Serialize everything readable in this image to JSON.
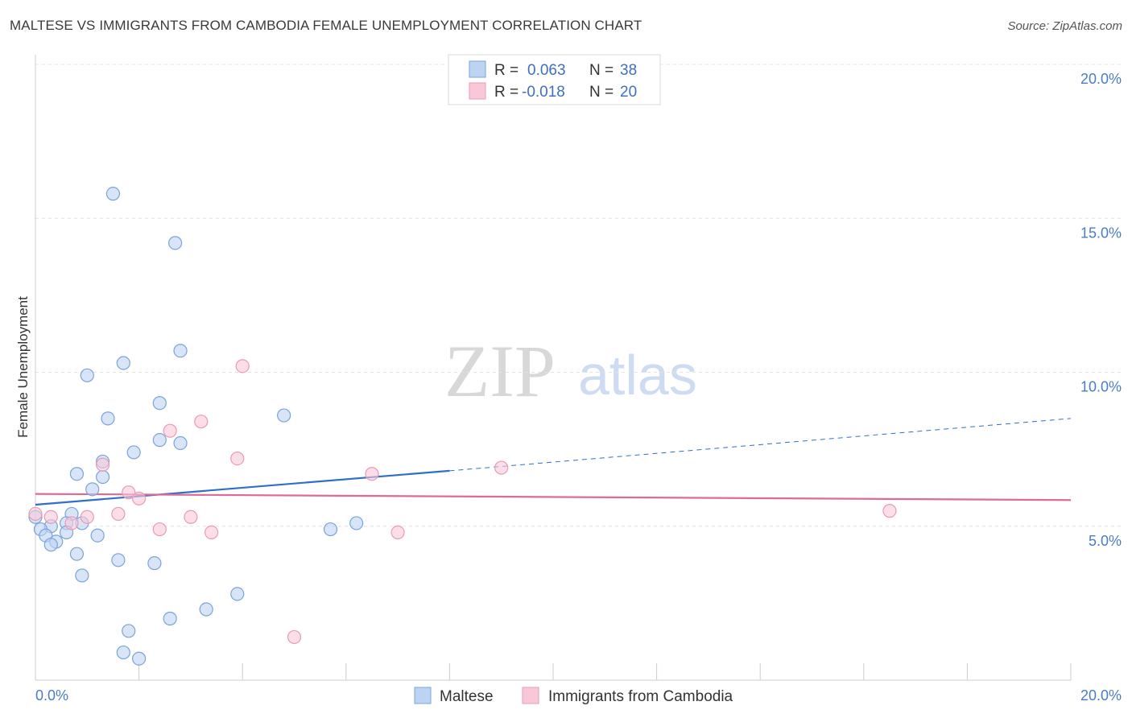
{
  "header": {
    "title": "MALTESE VS IMMIGRANTS FROM CAMBODIA FEMALE UNEMPLOYMENT CORRELATION CHART",
    "source": "Source: ZipAtlas.com"
  },
  "watermark": {
    "zip": "ZIP",
    "atlas": "atlas"
  },
  "colors": {
    "maltese_fill": "#bcd3f2",
    "maltese_stroke": "#7aa3dd",
    "maltese_line": "#2f6fcc",
    "cambodia_fill": "#f9c8d8",
    "cambodia_stroke": "#e99ab5",
    "cambodia_line": "#e06a95",
    "grid": "#e3e3e3",
    "tick_text": "#4a7cc7"
  },
  "legend": {
    "r_label": "R =",
    "n_label": "N =",
    "rows": [
      {
        "r": "0.063",
        "n": "38"
      },
      {
        "r": "-0.018",
        "n": "20"
      }
    ]
  },
  "chart_data": {
    "type": "scatter",
    "title": "MALTESE VS IMMIGRANTS FROM CAMBODIA FEMALE UNEMPLOYMENT CORRELATION CHART",
    "xlabel": "",
    "ylabel": "Female Unemployment",
    "xlim": [
      0,
      20
    ],
    "ylim": [
      0,
      20
    ],
    "x_ticks": [
      "0.0%",
      "20.0%"
    ],
    "y_ticks": [
      "5.0%",
      "10.0%",
      "15.0%",
      "20.0%"
    ],
    "y_tick_values": [
      5,
      10,
      15,
      20
    ],
    "grid": true,
    "legend_position": "top-center",
    "series": [
      {
        "name": "Maltese",
        "r": 0.063,
        "n": 38,
        "trend": {
          "x0": 0,
          "y0": 5.7,
          "x1": 8.0,
          "y1": 6.8,
          "dash_x1": 20,
          "dash_y1": 8.5
        },
        "points": [
          [
            1.5,
            15.8
          ],
          [
            2.7,
            14.2
          ],
          [
            2.8,
            10.7
          ],
          [
            1.7,
            10.3
          ],
          [
            1.0,
            9.9
          ],
          [
            2.4,
            9.0
          ],
          [
            4.8,
            8.6
          ],
          [
            1.4,
            8.5
          ],
          [
            2.4,
            7.8
          ],
          [
            2.8,
            7.7
          ],
          [
            1.9,
            7.4
          ],
          [
            1.3,
            7.1
          ],
          [
            0.8,
            6.7
          ],
          [
            1.3,
            6.6
          ],
          [
            1.1,
            6.2
          ],
          [
            0.7,
            5.4
          ],
          [
            0.0,
            5.3
          ],
          [
            0.9,
            5.1
          ],
          [
            0.6,
            5.1
          ],
          [
            0.3,
            5.0
          ],
          [
            5.7,
            4.9
          ],
          [
            0.1,
            4.9
          ],
          [
            0.6,
            4.8
          ],
          [
            6.2,
            5.1
          ],
          [
            0.2,
            4.7
          ],
          [
            1.2,
            4.7
          ],
          [
            0.4,
            4.5
          ],
          [
            0.3,
            4.4
          ],
          [
            0.8,
            4.1
          ],
          [
            1.6,
            3.9
          ],
          [
            2.3,
            3.8
          ],
          [
            0.9,
            3.4
          ],
          [
            3.9,
            2.8
          ],
          [
            3.3,
            2.3
          ],
          [
            2.6,
            2.0
          ],
          [
            1.8,
            1.6
          ],
          [
            1.7,
            0.9
          ],
          [
            2.0,
            0.7
          ]
        ]
      },
      {
        "name": "Immigrants from Cambodia",
        "r": -0.018,
        "n": 20,
        "trend": {
          "x0": 0,
          "y0": 6.05,
          "x1": 20,
          "y1": 5.85
        },
        "points": [
          [
            4.0,
            10.2
          ],
          [
            3.2,
            8.4
          ],
          [
            2.6,
            8.1
          ],
          [
            3.9,
            7.2
          ],
          [
            1.3,
            7.0
          ],
          [
            9.0,
            6.9
          ],
          [
            6.5,
            6.7
          ],
          [
            1.8,
            6.1
          ],
          [
            2.0,
            5.9
          ],
          [
            16.5,
            5.5
          ],
          [
            1.6,
            5.4
          ],
          [
            0.0,
            5.4
          ],
          [
            0.3,
            5.3
          ],
          [
            1.0,
            5.3
          ],
          [
            3.0,
            5.3
          ],
          [
            0.7,
            5.1
          ],
          [
            2.4,
            4.9
          ],
          [
            3.4,
            4.8
          ],
          [
            7.0,
            4.8
          ],
          [
            5.0,
            1.4
          ]
        ]
      }
    ]
  }
}
